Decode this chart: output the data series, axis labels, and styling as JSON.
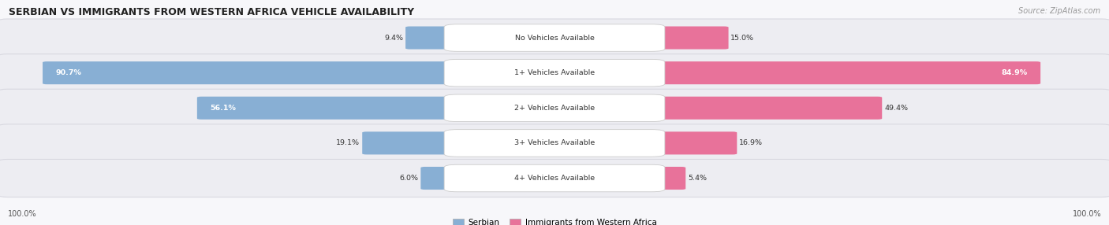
{
  "title": "SERBIAN VS IMMIGRANTS FROM WESTERN AFRICA VEHICLE AVAILABILITY",
  "source": "Source: ZipAtlas.com",
  "categories": [
    "No Vehicles Available",
    "1+ Vehicles Available",
    "2+ Vehicles Available",
    "3+ Vehicles Available",
    "4+ Vehicles Available"
  ],
  "serbian_values": [
    9.4,
    90.7,
    56.1,
    19.1,
    6.0
  ],
  "immigrant_values": [
    15.0,
    84.9,
    49.4,
    16.9,
    5.4
  ],
  "serbian_color": "#88afd4",
  "immigrant_color": "#e8729a",
  "row_bg_color": "#ededf2",
  "row_border_color": "#d8d8e0",
  "title_color": "#222222",
  "source_color": "#999999",
  "label_text_color": "#333333",
  "left_label": "100.0%",
  "right_label": "100.0%",
  "legend_serbian": "Serbian",
  "legend_immigrant": "Immigrants from Western Africa",
  "fig_bg": "#f7f7fa"
}
